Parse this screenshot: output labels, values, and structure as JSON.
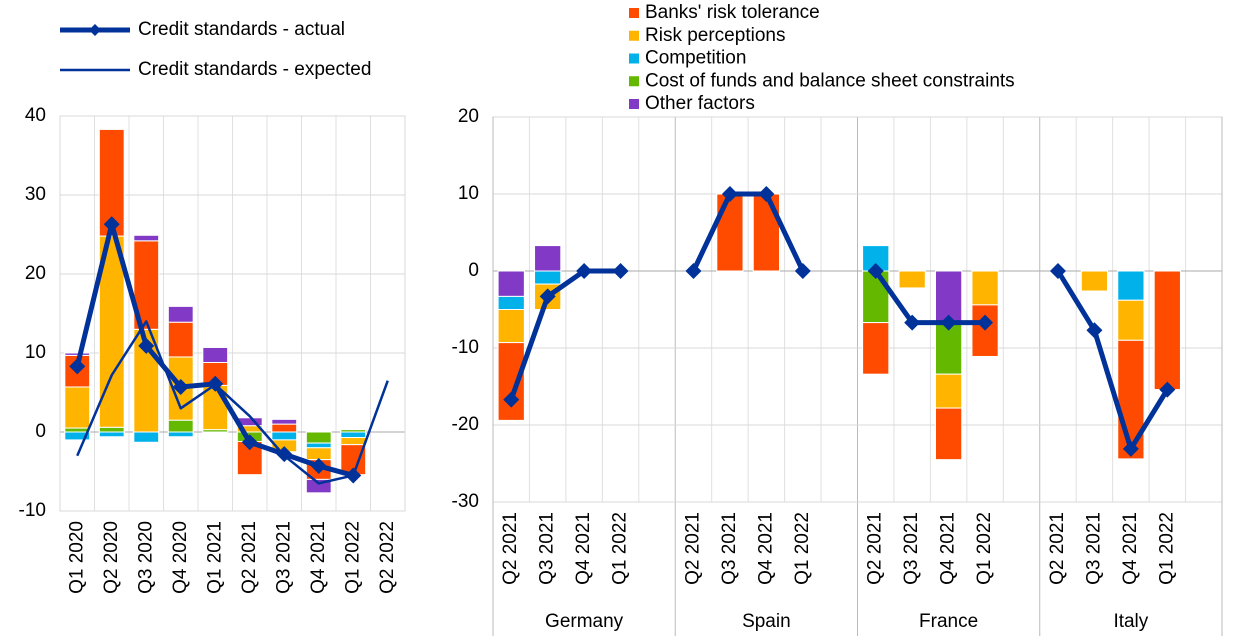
{
  "chart_data": [
    {
      "type": "bar",
      "categories": [
        "Q1 2020",
        "Q2 2020",
        "Q3 2020",
        "Q4 2020",
        "Q1 2021",
        "Q2 2021",
        "Q3 2021",
        "Q4 2021",
        "Q1 2022",
        "Q2 2022"
      ],
      "ylim": [
        -10,
        40
      ],
      "yticks": [
        -10,
        0,
        10,
        20,
        30,
        40
      ],
      "grid": true,
      "series": [
        {
          "type": "bar",
          "color": "#65b800",
          "values": [
            0.5,
            0.6,
            0,
            1.5,
            0.3,
            -1.2,
            0,
            -1.4,
            0.3,
            null
          ]
        },
        {
          "type": "bar",
          "color": "#00b1ea",
          "values": [
            -1,
            -0.6,
            -1.3,
            -0.6,
            0,
            0,
            -1,
            -0.6,
            -0.7,
            null
          ]
        },
        {
          "type": "bar",
          "color": "#ffb400",
          "values": [
            5.2,
            24.2,
            13,
            8,
            5.6,
            0.8,
            -1.5,
            -1.5,
            -0.9,
            null
          ]
        },
        {
          "type": "bar",
          "color": "#ff4b00",
          "values": [
            4,
            13.5,
            11.2,
            4.4,
            2.9,
            -4.2,
            1,
            -2.5,
            -3.8,
            null
          ]
        },
        {
          "type": "bar",
          "color": "#8139c6",
          "values": [
            0.3,
            0,
            0.7,
            2,
            1.9,
            1,
            0.6,
            -1.7,
            0,
            null
          ]
        },
        {
          "type": "line",
          "name": "Credit standards - actual",
          "color": "#003299",
          "markers": true,
          "values": [
            8.3,
            26.3,
            10.9,
            5.7,
            6.1,
            -1.3,
            -2.8,
            -4.3,
            -5.5,
            null
          ]
        },
        {
          "type": "line",
          "name": "Credit standards - expected",
          "color": "#003299",
          "markers": false,
          "values": [
            -3,
            7.2,
            14,
            3,
            6,
            2,
            -3,
            -6.5,
            -5.5,
            6.5
          ]
        }
      ]
    },
    {
      "type": "bar",
      "groups": [
        "Germany",
        "Spain",
        "France",
        "Italy"
      ],
      "categories": [
        "Q2 2021",
        "Q3 2021",
        "Q4 2021",
        "Q1 2022",
        "Q2 2021",
        "Q3 2021",
        "Q4 2021",
        "Q1 2022",
        "Q2 2021",
        "Q3 2021",
        "Q4 2021",
        "Q1 2022",
        "Q2 2021",
        "Q3 2021",
        "Q4 2021",
        "Q1 2022"
      ],
      "ylim": [
        -30,
        20
      ],
      "yticks": [
        -30,
        -20,
        -10,
        0,
        10,
        20
      ],
      "grid": true,
      "series": [
        {
          "type": "bar",
          "name": "Other factors",
          "color": "#8139c6",
          "values": [
            -3.3,
            3.3,
            0,
            0,
            0,
            0,
            0,
            0,
            0,
            0,
            -6.7,
            0,
            0,
            0,
            0,
            0
          ]
        },
        {
          "type": "bar",
          "name": "Cost of funds and balance sheet constraints",
          "color": "#65b800",
          "values": [
            0,
            0,
            0,
            0,
            0,
            0,
            0,
            0,
            -6.7,
            0,
            -6.7,
            0,
            0,
            0,
            0,
            0
          ]
        },
        {
          "type": "bar",
          "name": "Competition",
          "color": "#00b1ea",
          "values": [
            -1.7,
            -1.7,
            0,
            0,
            0,
            0,
            0,
            0,
            3.3,
            0,
            0,
            0,
            0,
            0,
            -3.8,
            0
          ]
        },
        {
          "type": "bar",
          "name": "Risk perceptions",
          "color": "#ffb400",
          "values": [
            -4.3,
            -3.3,
            0,
            0,
            0,
            0,
            0,
            0,
            0,
            -2.2,
            -4.4,
            -4.4,
            0,
            -2.6,
            -5.2,
            0
          ]
        },
        {
          "type": "bar",
          "name": "Banks' risk tolerance",
          "color": "#ff4b00",
          "values": [
            -10.1,
            0,
            0,
            0,
            0,
            10,
            10,
            0,
            -6.7,
            0,
            -6.7,
            -6.7,
            0,
            0,
            -15.4,
            -15.4
          ]
        },
        {
          "type": "line",
          "color": "#003299",
          "markers": true,
          "values": [
            -16.7,
            -3.3,
            0,
            0,
            0,
            10,
            10,
            0,
            0,
            -6.7,
            -6.7,
            -6.7,
            0,
            -7.7,
            -23.1,
            -15.4
          ]
        }
      ]
    }
  ]
}
